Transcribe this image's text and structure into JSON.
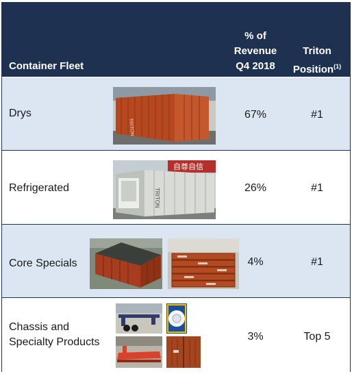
{
  "header": {
    "fleet_label": "Container Fleet",
    "revenue_line1": "% of",
    "revenue_line2": "Revenue",
    "revenue_line3": "Q4 2018",
    "position_line1": "Triton",
    "position_line2": "Position",
    "position_note": "(1)"
  },
  "rows": [
    {
      "label": "Drys",
      "revenue": "67%",
      "position": "#1"
    },
    {
      "label": "Refrigerated",
      "revenue": "26%",
      "position": "#1"
    },
    {
      "label": "Core Specials",
      "revenue": "4%",
      "position": "#1"
    },
    {
      "label_line1": "Chassis and",
      "label_line2": "Specialty Products",
      "revenue": "3%",
      "position": "Top 5"
    }
  ],
  "photo_text": {
    "reefer_brand": "TRITON",
    "dry_brand": "TRITON",
    "sign_text": "自尊自信"
  },
  "colors": {
    "header_bg": "#1e3150",
    "band_bg": "#dce6f2",
    "container_orange": "#b5481f",
    "reefer_white": "#d9dcd6"
  }
}
